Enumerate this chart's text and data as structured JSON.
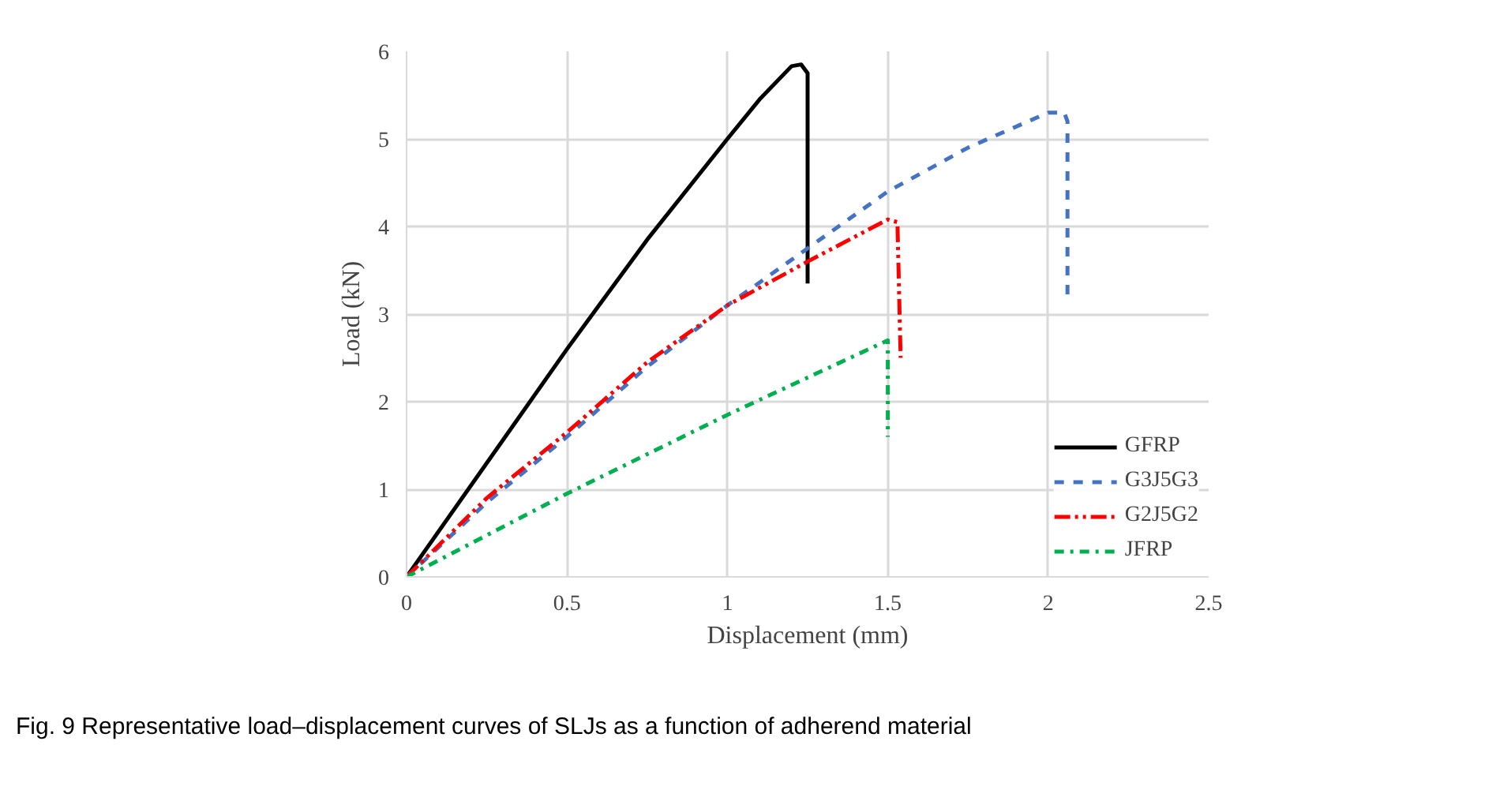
{
  "chart_data": {
    "type": "line",
    "xlabel": "Displacement (mm)",
    "ylabel": "Load (kN)",
    "xlim": [
      0,
      2.5
    ],
    "ylim": [
      0,
      6
    ],
    "xticks": [
      0,
      0.5,
      1,
      1.5,
      2,
      2.5
    ],
    "yticks": [
      0,
      1,
      2,
      3,
      4,
      5,
      6
    ],
    "grid": true,
    "legend": "bottom right",
    "marker": "none",
    "annotations": [
      "Fig. 9  Representative load–displacement curves of SLJs as a function of adherend material"
    ],
    "series": [
      {
        "name": "GFRP",
        "color": "#000000",
        "line_style": "solid",
        "x": [
          0,
          0.25,
          0.5,
          0.75,
          1.0,
          1.1,
          1.2,
          1.23,
          1.25,
          1.25
        ],
        "values": [
          0,
          1.3,
          2.6,
          3.85,
          5.0,
          5.45,
          5.83,
          5.85,
          5.75,
          3.35
        ]
      },
      {
        "name": "G3J5G3",
        "color": "#4472c4",
        "line_style": "dashed",
        "x": [
          0,
          0.25,
          0.5,
          0.75,
          1.0,
          1.25,
          1.5,
          1.75,
          2.0,
          2.05,
          2.06,
          2.06
        ],
        "values": [
          0,
          0.85,
          1.6,
          2.4,
          3.1,
          3.75,
          4.4,
          4.9,
          5.3,
          5.3,
          5.2,
          3.2
        ]
      },
      {
        "name": "G2J5G2",
        "color": "#ff0000",
        "line_style": "dashdotdot",
        "x": [
          0,
          0.25,
          0.5,
          0.75,
          1.0,
          1.25,
          1.5,
          1.53,
          1.54
        ],
        "values": [
          0,
          0.9,
          1.65,
          2.45,
          3.1,
          3.6,
          4.08,
          4.05,
          2.5
        ]
      },
      {
        "name": "JFRP",
        "color": "#00b050",
        "line_style": "dashdot",
        "x": [
          0,
          0.5,
          1.0,
          1.5,
          1.5
        ],
        "values": [
          0,
          0.95,
          1.85,
          2.7,
          1.6
        ]
      }
    ]
  }
}
